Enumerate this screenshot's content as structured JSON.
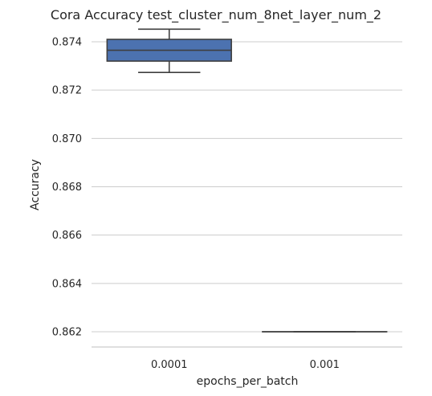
{
  "chart_data": {
    "type": "box",
    "title": "Cora Accuracy test_cluster_num_8net_layer_num_2",
    "xlabel": "epochs_per_batch",
    "ylabel": "Accuracy",
    "categories": [
      "0.0001",
      "0.001"
    ],
    "ylim": [
      0.8614,
      0.8746
    ],
    "yticks": [
      0.862,
      0.864,
      0.866,
      0.868,
      0.87,
      0.872,
      0.874
    ],
    "ytick_labels": [
      "0.862",
      "0.864",
      "0.866",
      "0.868",
      "0.870",
      "0.872",
      "0.874"
    ],
    "grid": true,
    "boxes": [
      {
        "category": "0.0001",
        "whisker_low": 0.87273,
        "q1": 0.8732,
        "median": 0.87365,
        "q3": 0.8741,
        "whisker_high": 0.87452,
        "color": "#4c72b0"
      },
      {
        "category": "0.001",
        "whisker_low": 0.862,
        "q1": 0.862,
        "median": 0.862,
        "q3": 0.862,
        "whisker_high": 0.862,
        "color": "#dd8452"
      }
    ]
  }
}
